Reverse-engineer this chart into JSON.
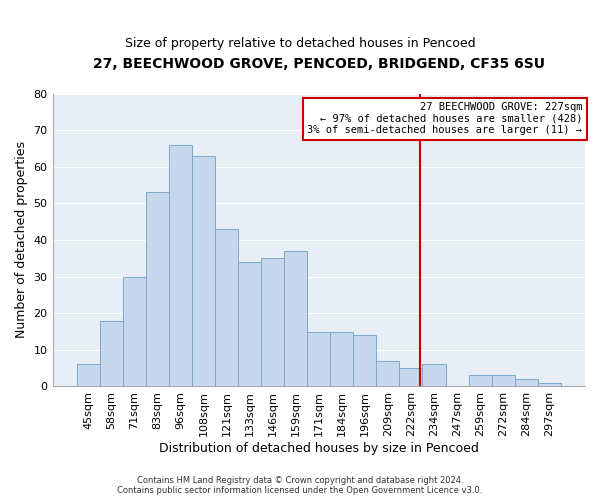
{
  "title": "27, BEECHWOOD GROVE, PENCOED, BRIDGEND, CF35 6SU",
  "subtitle": "Size of property relative to detached houses in Pencoed",
  "xlabel": "Distribution of detached houses by size in Pencoed",
  "ylabel": "Number of detached properties",
  "bar_color": "#c8d8ec",
  "bar_edgecolor": "#7aabcc",
  "plot_bg_color": "#e8eef5",
  "background_color": "#ffffff",
  "grid_color": "#ffffff",
  "categories": [
    "45sqm",
    "58sqm",
    "71sqm",
    "83sqm",
    "96sqm",
    "108sqm",
    "121sqm",
    "133sqm",
    "146sqm",
    "159sqm",
    "171sqm",
    "184sqm",
    "196sqm",
    "209sqm",
    "222sqm",
    "234sqm",
    "247sqm",
    "259sqm",
    "272sqm",
    "284sqm",
    "297sqm"
  ],
  "values": [
    6,
    18,
    30,
    53,
    66,
    63,
    43,
    34,
    35,
    37,
    15,
    15,
    14,
    7,
    5,
    6,
    0,
    3,
    3,
    2,
    1
  ],
  "ylim": [
    0,
    80
  ],
  "yticks": [
    0,
    10,
    20,
    30,
    40,
    50,
    60,
    70,
    80
  ],
  "marker_line_color": "#cc0000",
  "annotation_box_edgecolor": "#cc0000",
  "annotation_line1": "27 BEECHWOOD GROVE: 227sqm",
  "annotation_line2": "← 97% of detached houses are smaller (428)",
  "annotation_line3": "3% of semi-detached houses are larger (11) →",
  "footer_line1": "Contains HM Land Registry data © Crown copyright and database right 2024.",
  "footer_line2": "Contains public sector information licensed under the Open Government Licence v3.0."
}
